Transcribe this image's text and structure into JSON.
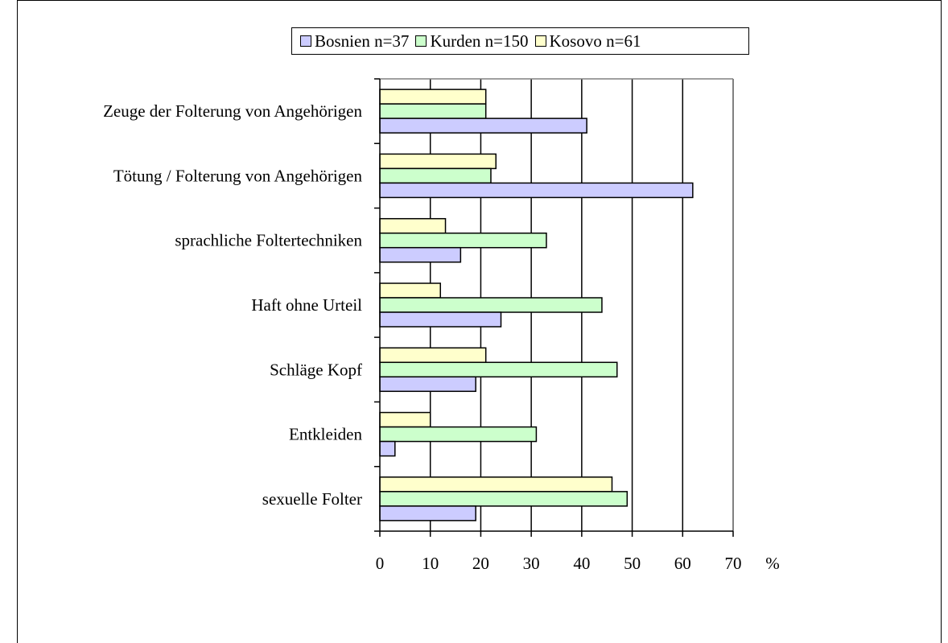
{
  "chart_data": {
    "type": "bar",
    "orientation": "horizontal",
    "categories": [
      "Zeuge der Folterung von Angehörigen",
      "Tötung / Folterung von Angehörigen",
      "sprachliche Foltertechniken",
      "Haft ohne Urteil",
      "Schläge Kopf",
      "Entkleiden",
      "sexuelle Folter"
    ],
    "series": [
      {
        "name": "Bosnien n=37",
        "color": "#ccccff",
        "values": [
          41,
          62,
          16,
          24,
          19,
          3,
          19
        ]
      },
      {
        "name": "Kurden n=150",
        "color": "#ccffcc",
        "values": [
          21,
          22,
          33,
          44,
          47,
          31,
          49
        ]
      },
      {
        "name": "Kosovo n=61",
        "color": "#ffffcc",
        "values": [
          21,
          23,
          13,
          12,
          21,
          10,
          46
        ]
      }
    ],
    "xlim": [
      0,
      70
    ],
    "xticks": [
      "0",
      "10",
      "20",
      "30",
      "40",
      "50",
      "60",
      "70"
    ],
    "xunit": "%",
    "grid": "vertical",
    "legend": "top"
  }
}
